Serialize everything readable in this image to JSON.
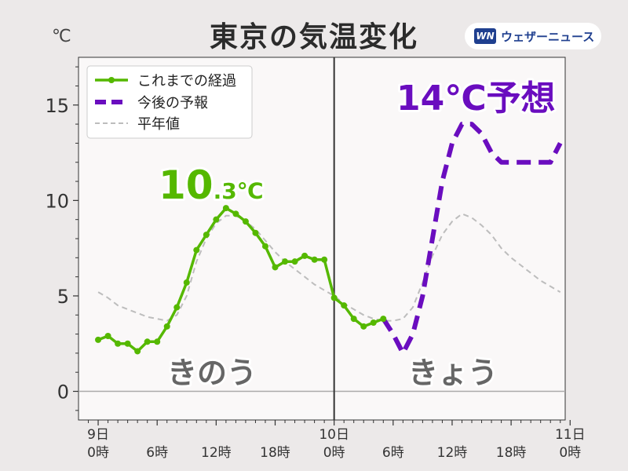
{
  "title": "東京の気温変化",
  "unit": "℃",
  "brand": "ウェザーニュース",
  "colors": {
    "observed": "#55b800",
    "forecast": "#6a0dbf",
    "normal": "#bdbdbd",
    "plot_bg": "#faf8f8",
    "page_bg": "#ece9e9"
  },
  "chart_data": {
    "type": "line",
    "title": "東京の気温変化",
    "ylabel": "℃",
    "ylim": [
      -1.5,
      17.5
    ],
    "xlim": [
      -2,
      47.5
    ],
    "yticks": [
      0,
      5,
      10,
      15
    ],
    "xticks": [
      {
        "x": 0,
        "line1": "9日",
        "line2": "0時"
      },
      {
        "x": 6,
        "line1": "",
        "line2": "6時"
      },
      {
        "x": 12,
        "line1": "",
        "line2": "12時"
      },
      {
        "x": 18,
        "line1": "",
        "line2": "18時"
      },
      {
        "x": 24,
        "line1": "10日",
        "line2": "0時"
      },
      {
        "x": 30,
        "line1": "",
        "line2": "6時"
      },
      {
        "x": 36,
        "line1": "",
        "line2": "12時"
      },
      {
        "x": 42,
        "line1": "",
        "line2": "18時"
      },
      {
        "x": 48,
        "line1": "11日",
        "line2": "0時"
      }
    ],
    "divider_x": 24,
    "series": [
      {
        "name": "これまでの経過",
        "style": "line-marker",
        "points": [
          [
            0,
            2.7
          ],
          [
            1,
            2.9
          ],
          [
            2,
            2.5
          ],
          [
            3,
            2.5
          ],
          [
            4,
            2.1
          ],
          [
            5,
            2.6
          ],
          [
            6,
            2.6
          ],
          [
            7,
            3.4
          ],
          [
            8,
            4.4
          ],
          [
            9,
            5.7
          ],
          [
            10,
            7.4
          ],
          [
            11,
            8.2
          ],
          [
            12,
            9.0
          ],
          [
            13,
            9.6
          ],
          [
            14,
            9.3
          ],
          [
            15,
            8.9
          ],
          [
            16,
            8.3
          ],
          [
            17,
            7.6
          ],
          [
            18,
            6.5
          ],
          [
            19,
            6.8
          ],
          [
            20,
            6.8
          ],
          [
            21,
            7.1
          ],
          [
            22,
            6.9
          ],
          [
            23,
            6.9
          ],
          [
            24,
            4.9
          ],
          [
            25,
            4.5
          ],
          [
            26,
            3.8
          ],
          [
            27,
            3.4
          ],
          [
            28,
            3.6
          ],
          [
            29,
            3.8
          ]
        ]
      },
      {
        "name": "今後の予報",
        "style": "dashed-bold",
        "points": [
          [
            29,
            3.8
          ],
          [
            30,
            3.0
          ],
          [
            31,
            2.0
          ],
          [
            32,
            3.0
          ],
          [
            33,
            5.0
          ],
          [
            34,
            8.0
          ],
          [
            35,
            11.0
          ],
          [
            36,
            13.0
          ],
          [
            37,
            14.0
          ],
          [
            38,
            14.0
          ],
          [
            39,
            13.5
          ],
          [
            40,
            12.5
          ],
          [
            41,
            12.0
          ],
          [
            42,
            12.0
          ],
          [
            43,
            12.0
          ],
          [
            44,
            12.0
          ],
          [
            45,
            12.0
          ],
          [
            46,
            12.0
          ],
          [
            47,
            13.0
          ]
        ]
      },
      {
        "name": "平年値",
        "style": "dashed-thin",
        "points": [
          [
            0,
            5.2
          ],
          [
            1,
            4.9
          ],
          [
            2,
            4.5
          ],
          [
            3,
            4.3
          ],
          [
            4,
            4.1
          ],
          [
            5,
            3.9
          ],
          [
            6,
            3.8
          ],
          [
            7,
            3.7
          ],
          [
            8,
            4.0
          ],
          [
            9,
            5.0
          ],
          [
            10,
            6.8
          ],
          [
            11,
            8.0
          ],
          [
            12,
            8.8
          ],
          [
            13,
            9.2
          ],
          [
            14,
            9.2
          ],
          [
            15,
            8.9
          ],
          [
            16,
            8.5
          ],
          [
            17,
            7.9
          ],
          [
            18,
            7.3
          ],
          [
            19,
            6.8
          ],
          [
            20,
            6.4
          ],
          [
            21,
            6.0
          ],
          [
            22,
            5.6
          ],
          [
            23,
            5.3
          ],
          [
            24,
            5.0
          ],
          [
            25,
            4.6
          ],
          [
            26,
            4.3
          ],
          [
            27,
            4.0
          ],
          [
            28,
            3.8
          ],
          [
            29,
            3.7
          ],
          [
            30,
            3.7
          ],
          [
            31,
            3.8
          ],
          [
            32,
            4.4
          ],
          [
            33,
            5.7
          ],
          [
            34,
            7.1
          ],
          [
            35,
            8.2
          ],
          [
            36,
            8.9
          ],
          [
            37,
            9.3
          ],
          [
            38,
            9.1
          ],
          [
            39,
            8.7
          ],
          [
            40,
            8.2
          ],
          [
            41,
            7.5
          ],
          [
            42,
            7.0
          ],
          [
            43,
            6.6
          ],
          [
            44,
            6.2
          ],
          [
            45,
            5.8
          ],
          [
            46,
            5.5
          ],
          [
            47,
            5.2
          ]
        ]
      }
    ],
    "annotations": {
      "max_observed": {
        "value": "10",
        "suffix": ".3℃"
      },
      "forecast_max": "14℃予想",
      "label_yesterday": "きのう",
      "label_today": "きょう"
    },
    "legend": "top-left"
  }
}
